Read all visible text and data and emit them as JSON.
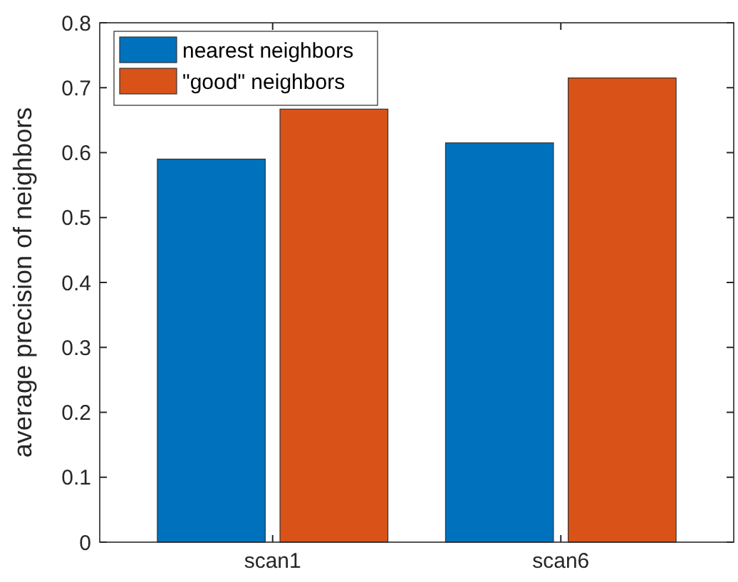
{
  "chart_data": {
    "type": "bar",
    "ylabel": "average precision of neighbors",
    "categories": [
      "scan1",
      "scan6"
    ],
    "series": [
      {
        "name": "nearest neighbors",
        "color": "#0072bd",
        "values": [
          0.59,
          0.615
        ]
      },
      {
        "name": "\"good\" neighbors",
        "color": "#d95319",
        "values": [
          0.667,
          0.715
        ]
      }
    ],
    "ylim": [
      0,
      0.8
    ],
    "yticks": [
      0,
      0.1,
      0.2,
      0.3,
      0.4,
      0.5,
      0.6,
      0.7,
      0.8
    ],
    "grid": false,
    "legend": "top left"
  }
}
